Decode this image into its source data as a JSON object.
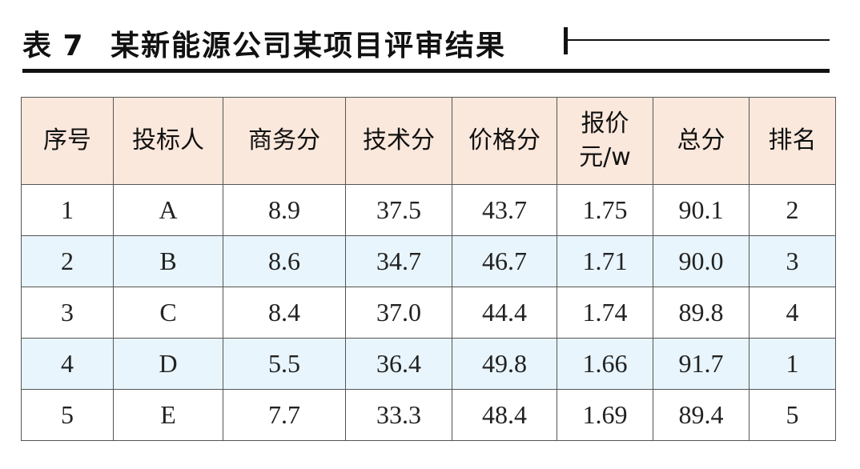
{
  "title": {
    "label": "表 7",
    "text": "某新能源公司某项目评审结果"
  },
  "table": {
    "headers": [
      "序号",
      "投标人",
      "商务分",
      "技术分",
      "价格分",
      "报价 元/w",
      "总分",
      "排名"
    ],
    "header_price": {
      "line1": "报价",
      "line2": "元/w"
    },
    "rows": [
      [
        "1",
        "A",
        "8.9",
        "37.5",
        "43.7",
        "1.75",
        "90.1",
        "2"
      ],
      [
        "2",
        "B",
        "8.6",
        "34.7",
        "46.7",
        "1.71",
        "90.0",
        "3"
      ],
      [
        "3",
        "C",
        "8.4",
        "37.0",
        "44.4",
        "1.74",
        "89.8",
        "4"
      ],
      [
        "4",
        "D",
        "5.5",
        "36.4",
        "49.8",
        "1.66",
        "91.7",
        "1"
      ],
      [
        "5",
        "E",
        "7.7",
        "33.3",
        "48.4",
        "1.69",
        "89.4",
        "5"
      ]
    ]
  },
  "colors": {
    "header_bg": "#fbe8dc",
    "alt_row_bg": "#e8f5fc",
    "text": "#111111"
  }
}
